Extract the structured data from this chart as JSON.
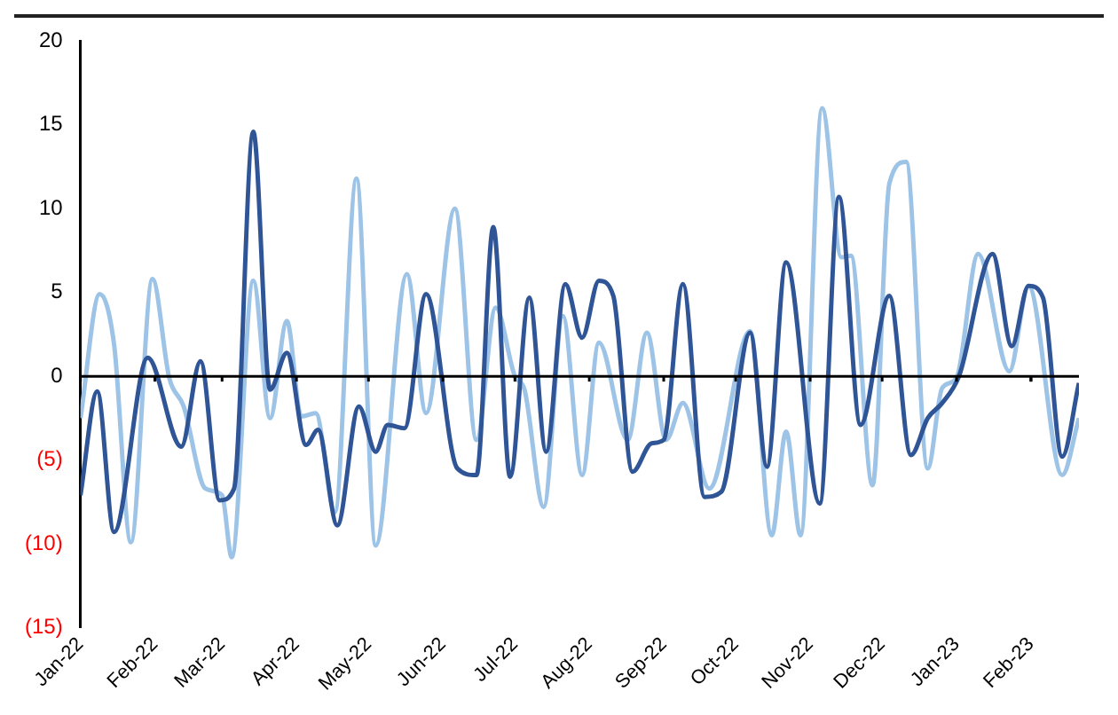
{
  "chart_data": {
    "type": "line",
    "xlim": [
      "2022-01-01",
      "2023-02-21"
    ],
    "xticks": [
      {
        "value": "2022-01-01",
        "label": "Jan-22"
      },
      {
        "value": "2022-02-01",
        "label": "Feb-22"
      },
      {
        "value": "2022-03-01",
        "label": "Mar-22"
      },
      {
        "value": "2022-04-01",
        "label": "Apr-22"
      },
      {
        "value": "2022-05-01",
        "label": "May-22"
      },
      {
        "value": "2022-06-01",
        "label": "Jun-22"
      },
      {
        "value": "2022-07-01",
        "label": "Jul-22"
      },
      {
        "value": "2022-08-01",
        "label": "Aug-22"
      },
      {
        "value": "2022-09-01",
        "label": "Sep-22"
      },
      {
        "value": "2022-10-01",
        "label": "Oct-22"
      },
      {
        "value": "2022-11-01",
        "label": "Nov-22"
      },
      {
        "value": "2022-12-01",
        "label": "Dec-22"
      },
      {
        "value": "2023-01-01",
        "label": "Jan-23"
      },
      {
        "value": "2023-02-01",
        "label": "Feb-23"
      }
    ],
    "ylim": [
      -15,
      20
    ],
    "yticks": [
      20,
      15,
      10,
      5,
      0,
      {
        "value": -5,
        "label": "(5)"
      },
      {
        "value": -10,
        "label": "(10)"
      },
      {
        "value": -15,
        "label": "(15)"
      }
    ],
    "ref_lines": [
      {
        "axis": "y",
        "value": 0,
        "color": "#000000"
      }
    ],
    "grid": false,
    "legend": false,
    "marker": "none",
    "line_style": "solid",
    "series": [
      {
        "color": "#2f5597",
        "x": [
          "2022-01-01",
          "2022-01-08",
          "2022-01-15",
          "2022-01-29",
          "2022-02-12",
          "2022-02-20",
          "2022-02-28",
          "2022-03-06",
          "2022-03-14",
          "2022-03-21",
          "2022-03-28",
          "2022-04-05",
          "2022-04-10",
          "2022-04-18",
          "2022-04-27",
          "2022-05-04",
          "2022-05-09",
          "2022-05-16",
          "2022-05-25",
          "2022-06-07",
          "2022-06-15",
          "2022-06-22",
          "2022-06-29",
          "2022-07-07",
          "2022-07-14",
          "2022-07-22",
          "2022-07-29",
          "2022-08-05",
          "2022-08-11",
          "2022-08-19",
          "2022-08-27",
          "2022-09-01",
          "2022-09-09",
          "2022-09-18",
          "2022-09-25",
          "2022-10-07",
          "2022-10-14",
          "2022-10-22",
          "2022-11-05",
          "2022-11-13",
          "2022-11-22",
          "2022-12-04",
          "2022-12-13",
          "2022-12-20",
          "2022-12-26",
          "2023-01-02",
          "2023-01-16",
          "2023-01-24",
          "2023-01-31",
          "2023-02-06",
          "2023-02-14",
          "2023-02-21"
        ],
        "values": [
          -7.1,
          -0.9,
          -9.3,
          1.1,
          -4.2,
          0.9,
          -7.4,
          -6.7,
          14.6,
          -0.8,
          1.4,
          -4.1,
          -3.2,
          -8.9,
          -1.8,
          -4.5,
          -2.9,
          -3.1,
          4.9,
          -5.5,
          -5.9,
          8.9,
          -6.0,
          4.7,
          -4.5,
          5.5,
          2.3,
          5.7,
          4.8,
          -5.7,
          -4.0,
          -3.8,
          5.5,
          -7.2,
          -6.9,
          2.6,
          -5.4,
          6.8,
          -7.6,
          10.7,
          -2.9,
          4.8,
          -4.7,
          -2.5,
          -1.6,
          0,
          7.3,
          1.8,
          5.4,
          4.7,
          -4.8,
          -0.4
        ]
      },
      {
        "color": "#9dc3e6",
        "x": [
          "2022-01-01",
          "2022-01-09",
          "2022-01-15",
          "2022-01-22",
          "2022-01-31",
          "2022-02-07",
          "2022-02-13",
          "2022-02-22",
          "2022-03-01",
          "2022-03-05",
          "2022-03-14",
          "2022-03-21",
          "2022-03-28",
          "2022-04-03",
          "2022-04-09",
          "2022-04-17",
          "2022-04-26",
          "2022-05-04",
          "2022-05-17",
          "2022-05-25",
          "2022-06-06",
          "2022-06-15",
          "2022-06-23",
          "2022-07-01",
          "2022-07-05",
          "2022-07-13",
          "2022-07-21",
          "2022-07-29",
          "2022-08-05",
          "2022-08-17",
          "2022-08-25",
          "2022-09-02",
          "2022-09-09",
          "2022-09-20",
          "2022-10-07",
          "2022-10-16",
          "2022-10-22",
          "2022-10-28",
          "2022-11-06",
          "2022-11-14",
          "2022-11-18",
          "2022-11-27",
          "2022-12-04",
          "2022-12-11",
          "2022-12-20",
          "2022-12-26",
          "2023-01-01",
          "2023-01-10",
          "2023-01-23",
          "2023-01-31",
          "2023-02-14",
          "2023-02-21"
        ],
        "values": [
          -2.5,
          4.9,
          1.9,
          -9.9,
          5.8,
          -0.1,
          -1.8,
          -6.7,
          -7.1,
          -10.8,
          5.7,
          -2.5,
          3.3,
          -2.4,
          -2.2,
          -8.1,
          11.8,
          -10.1,
          6.1,
          -2.2,
          10.0,
          -3.8,
          4.1,
          0,
          -0.8,
          -7.8,
          3.6,
          -5.9,
          2.0,
          -3.8,
          2.6,
          -3.8,
          -1.6,
          -6.7,
          2.7,
          -9.5,
          -3.3,
          -9.5,
          16.0,
          7.1,
          7.2,
          -6.5,
          11.5,
          12.8,
          -5.5,
          -0.7,
          -0.1,
          7.3,
          0.3,
          5.4,
          -5.9,
          -2.5
        ]
      }
    ]
  }
}
